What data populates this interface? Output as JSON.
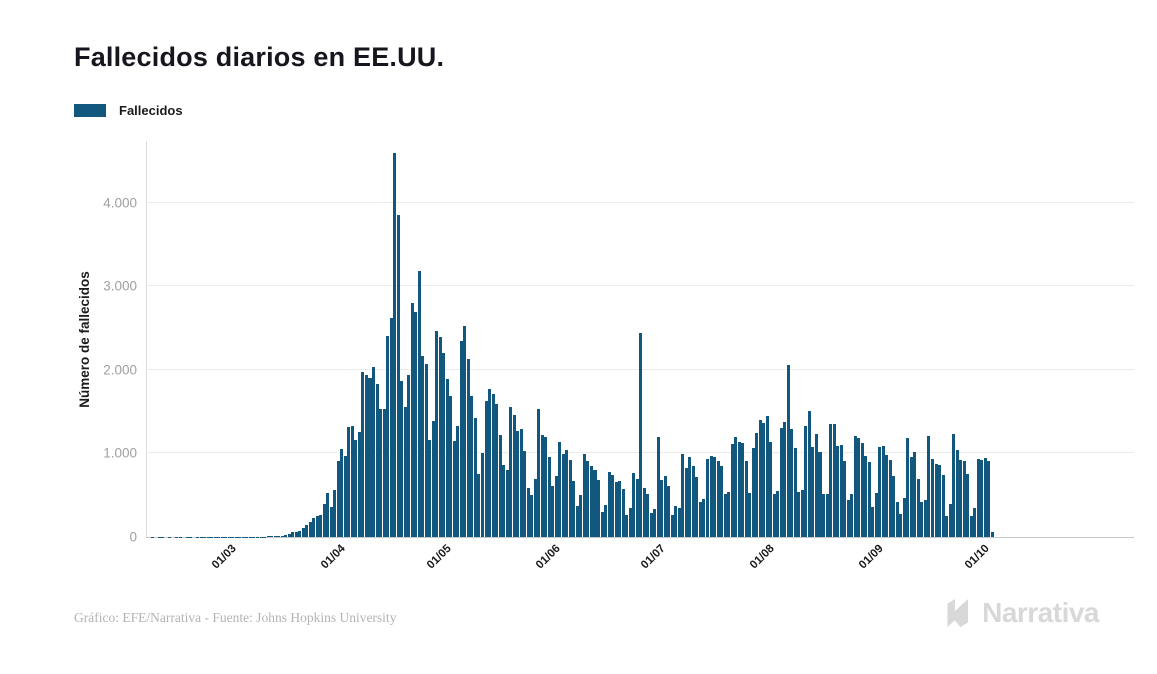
{
  "title": "Fallecidos diarios en EE.UU.",
  "legend": {
    "label": "Fallecidos",
    "color": "#12587E"
  },
  "y_axis": {
    "title": "Número de fallecidos",
    "ticks": [
      {
        "value": 0,
        "label": "0"
      },
      {
        "value": 1000,
        "label": "1.000"
      },
      {
        "value": 2000,
        "label": "2.000"
      },
      {
        "value": 3000,
        "label": "3.000"
      },
      {
        "value": 4000,
        "label": "4.000"
      }
    ]
  },
  "footer": {
    "credit": "Gráfico: EFE/Narrativa - Fuente: Johns Hopkins University",
    "brand": "Narrativa"
  },
  "chart_data": {
    "type": "bar",
    "title": "Fallecidos diarios en EE.UU.",
    "series_name": "Fallecidos",
    "xlabel": "",
    "ylabel": "Número de fallecidos",
    "ylim": [
      0,
      4740
    ],
    "grid": "horizontal",
    "legend_position": "top-left",
    "bar_color": "#12587E",
    "start_date": "2020-02-06",
    "data_span_fraction": 0.859,
    "month_ticks": [
      {
        "label": "01/03",
        "index": 24
      },
      {
        "label": "01/04",
        "index": 55
      },
      {
        "label": "01/05",
        "index": 85
      },
      {
        "label": "01/06",
        "index": 116
      },
      {
        "label": "01/07",
        "index": 146
      },
      {
        "label": "01/08",
        "index": 177
      },
      {
        "label": "01/09",
        "index": 208
      },
      {
        "label": "01/10",
        "index": 238
      }
    ],
    "values": [
      0,
      1,
      0,
      1,
      1,
      0,
      1,
      0,
      1,
      1,
      0,
      1,
      1,
      0,
      1,
      1,
      2,
      1,
      1,
      2,
      1,
      2,
      3,
      2,
      1,
      2,
      4,
      3,
      2,
      4,
      3,
      4,
      6,
      4,
      8,
      12,
      10,
      14,
      18,
      23,
      41,
      58,
      57,
      68,
      110,
      141,
      178,
      225,
      247,
      268,
      400,
      525,
      363,
      558,
      912,
      1049,
      968,
      1321,
      1331,
      1165,
      1255,
      1970,
      1940,
      1900,
      2035,
      1830,
      1528,
      1535,
      2408,
      2621,
      4591,
      3857,
      1867,
      1561,
      1939,
      2804,
      2693,
      3179,
      2172,
      2065,
      1157,
      1384,
      2470,
      2390,
      2201,
      1897,
      1691,
      1154,
      1324,
      2350,
      2528,
      2129,
      1687,
      1422,
      750,
      1008,
      1630,
      1772,
      1715,
      1595,
      1218,
      865,
      808,
      1552,
      1461,
      1263,
      1293,
      1035,
      592,
      505,
      693,
      1535,
      1223,
      1193,
      960,
      605,
      730,
      1134,
      995,
      1036,
      921,
      670,
      372,
      497,
      993,
      906,
      851,
      800,
      683,
      302,
      389,
      775,
      740,
      654,
      673,
      570,
      267,
      351,
      769,
      700,
      2437,
      591,
      517,
      288,
      334,
      1199,
      679,
      735,
      613,
      261,
      368,
      351,
      993,
      829,
      961,
      849,
      718,
      420,
      450,
      935,
      970,
      963,
      908,
      852,
      516,
      539,
      1117,
      1195,
      1140,
      1122,
      906,
      528,
      1069,
      1244,
      1403,
      1367,
      1451,
      1133,
      515,
      546,
      1302,
      1380,
      2060,
      1290,
      1064,
      543,
      558,
      1324,
      1504,
      1076,
      1236,
      1023,
      510,
      512,
      1357,
      1356,
      1090,
      1096,
      907,
      444,
      512,
      1205,
      1184,
      1120,
      975,
      901,
      363,
      532,
      1083,
      1090,
      980,
      919,
      729,
      423,
      276,
      463,
      1180,
      952,
      1013,
      696,
      418,
      438,
      1205,
      937,
      877,
      857,
      738,
      256,
      401,
      1232,
      1043,
      923,
      909,
      756,
      250,
      344,
      939,
      920,
      940,
      905,
      66
    ]
  }
}
